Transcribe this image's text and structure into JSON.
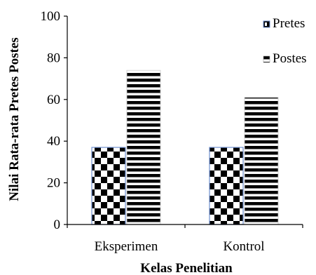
{
  "chart_data": {
    "type": "bar",
    "categories": [
      "Eksperimen",
      "Kontrol"
    ],
    "series": [
      {
        "name": "Pretes",
        "values": [
          37,
          37
        ],
        "pattern": "checkerboard"
      },
      {
        "name": "Postes",
        "values": [
          74,
          61
        ],
        "pattern": "horizontal-stripes"
      }
    ],
    "xlabel": "Kelas Penelitian",
    "ylabel": "Nilai Rata-rata Pretes Postes",
    "ylim": [
      0,
      100
    ],
    "yticks": [
      0,
      20,
      40,
      60,
      80,
      100
    ],
    "grid": false,
    "legend_position": "top-right",
    "colors": {
      "bar_fill": "#000000",
      "background": "#ffffff",
      "pretes_border": "#6f8fcf"
    }
  }
}
